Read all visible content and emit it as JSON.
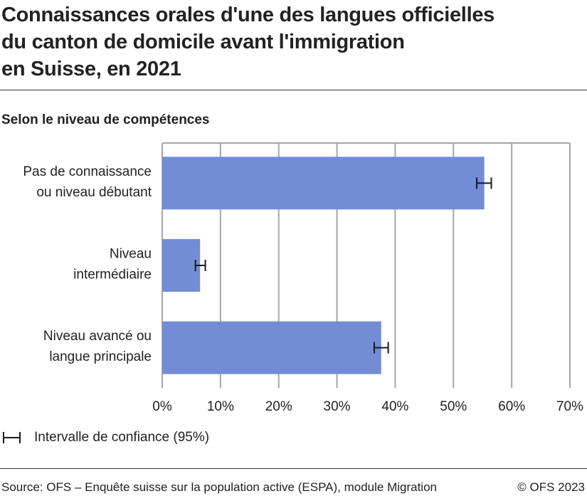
{
  "title": "Connaissances orales d'une des langues officielles du canton de domicile avant l'immigration en Suisse, en 2021",
  "title_lines": [
    "Connaissances orales d'une des langues officielles",
    "du canton de domicile avant l'immigration",
    "en Suisse, en 2021"
  ],
  "subtitle": "Selon le niveau de compétences",
  "legend": {
    "label": "Intervalle de confiance (95%)",
    "icon": "error-bar-icon"
  },
  "source": "Source: OFS – Enquête suisse sur la population active (ESPA), module Migration",
  "copyright": "© OFS 2023",
  "colors": {
    "bar": "#728cd6",
    "grid": "#a6a6a6",
    "error": "#1a1a1a"
  },
  "chart_data": {
    "type": "bar",
    "orientation": "horizontal",
    "categories": [
      [
        "Pas de connaissance",
        "ou niveau débutant"
      ],
      [
        "Niveau",
        "intermédiaire"
      ],
      [
        "Niveau avancé ou",
        "langue principale"
      ]
    ],
    "values": [
      55.3,
      6.5,
      37.6
    ],
    "ci_low": [
      54.0,
      5.7,
      36.4
    ],
    "ci_high": [
      56.5,
      7.4,
      38.8
    ],
    "xlim": [
      0,
      70
    ],
    "ticks": [
      "0%",
      "10%",
      "20%",
      "30%",
      "40%",
      "50%",
      "60%",
      "70%"
    ],
    "grid": true,
    "legend_position": "bottom-left"
  }
}
